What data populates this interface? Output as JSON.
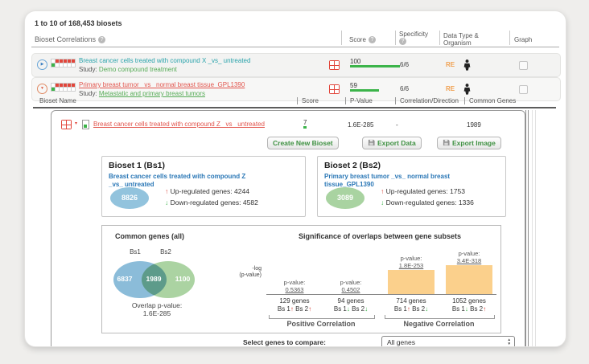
{
  "icons": {
    "help": "?",
    "expand_play": "▶",
    "collapse": "▼",
    "dropdown": "▾",
    "up": "↑",
    "down": "↓",
    "spin_up": "▲",
    "spin_down": "▼"
  },
  "colors": {
    "accent_red": "#e2453a",
    "accent_teal": "#2aa3ab",
    "accent_green": "#3cb44a",
    "link_green": "#56ab57",
    "bar_orange": "#fbd08c",
    "venn_blue": "#8bbcd9",
    "venn_green": "#abd3a2",
    "bioset_blue": "#2a77b6",
    "re_orange": "#f0a050"
  },
  "header": {
    "count": "1 to 10 of 168,453 biosets",
    "section": "Bioset Correlations",
    "columns": {
      "score": "Score",
      "specificity": "Specificity",
      "datatype1": "Data Type &",
      "datatype2": "Organism",
      "graph": "Graph"
    }
  },
  "rows": [
    {
      "name": "Breast cancer cells treated with compound X _vs_ untreated",
      "study_label": "Study:",
      "study": "Demo compound treatment",
      "score": "100",
      "score_pct": 100,
      "specificity": "6/6",
      "data_type": "RE"
    },
    {
      "name": "Primary breast tumor _vs_ normal breast tissue_GPL1390",
      "study_label": "Study:",
      "study": "Metastatic and primary breast tumors",
      "score": "59",
      "score_pct": 58,
      "specificity": "6/6",
      "data_type": "RE"
    }
  ],
  "subheader": {
    "bioset_name": "Bioset Name",
    "score": "Score",
    "p_value": "P-Value",
    "correlation": "Correlation/Direction",
    "common_genes": "Common Genes"
  },
  "detail": {
    "row": {
      "name": "Breast cancer cells treated with compound Z _vs_ untreated",
      "score": "7",
      "score_pct": 8,
      "p_value": "1.6E-285",
      "correlation": "-",
      "common_genes": "1989"
    },
    "buttons": {
      "create": "Create New Bioset",
      "export_data": "Export Data",
      "export_image": "Export Image"
    },
    "bioset1": {
      "title": "Bioset 1 (Bs1)",
      "name": "Breast cancer cells treated with compound Z _vs_ untreated",
      "total": "8826",
      "up_label": "Up-regulated genes:",
      "up_count": "4244",
      "down_label": "Down-regulated genes:",
      "down_count": "4582"
    },
    "bioset2": {
      "title": "Bioset 2 (Bs2)",
      "name": "Primary breast tumor _vs_ normal breast tissue_GPL1390",
      "total": "3089",
      "up_label": "Up-regulated genes:",
      "up_count": "1753",
      "down_label": "Down-regulated genes:",
      "down_count": "1336"
    },
    "venn": {
      "title": "Common genes  (all)",
      "bs1": "Bs1",
      "bs2": "Bs2",
      "left_count": "6837",
      "overlap_count": "1989",
      "right_count": "1100",
      "overlap_label": "Overlap p-value:",
      "overlap_value": "1.6E-285"
    },
    "overlap_chart": {
      "title": "Significance of overlaps between gene subsets",
      "ylabel1": "-log",
      "ylabel2": "(p-value)",
      "p_label": "p-value:",
      "cols": [
        {
          "p": "0.5363",
          "genes": "129 genes",
          "bs1": "Bs 1",
          "a1": "↑",
          "bs2": "Bs 2",
          "a2": "↑",
          "bar": 0
        },
        {
          "p": "0.4502",
          "genes": "94 genes",
          "bs1": "Bs 1",
          "a1": "↓",
          "bs2": "Bs 2",
          "a2": "↓",
          "bar": 0
        },
        {
          "p": "1.8E-253",
          "genes": "714 genes",
          "bs1": "Bs 1",
          "a1": "↑",
          "bs2": "Bs 2",
          "a2": "↓",
          "bar": 30
        },
        {
          "p": "3.4E-318",
          "genes": "1052 genes",
          "bs1": "Bs 1",
          "a1": "↓",
          "bs2": "Bs 2",
          "a2": "↑",
          "bar": 36
        }
      ],
      "group1": "Positive Correlation",
      "group2": "Negative Correlation"
    },
    "select_row": {
      "label": "Select genes to compare:",
      "value": "All genes"
    }
  },
  "chart_data": [
    {
      "type": "venn",
      "title": "Common genes (all)",
      "sets": [
        "Bs1",
        "Bs2"
      ],
      "bs1_only": 6837,
      "overlap": 1989,
      "bs2_only": 1100,
      "overlap_p_value": "1.6E-285"
    },
    {
      "type": "bar",
      "title": "Significance of overlaps between gene subsets",
      "ylabel": "-log (p-value)",
      "categories": [
        "Bs1↑ Bs2↑",
        "Bs1↓ Bs2↓",
        "Bs1↑ Bs2↓",
        "Bs1↓ Bs2↑"
      ],
      "p_values": [
        "0.5363",
        "0.4502",
        "1.8E-253",
        "3.4E-318"
      ],
      "gene_counts": [
        129,
        94,
        714,
        1052
      ],
      "groups": [
        "Positive Correlation",
        "Negative Correlation"
      ],
      "legend_position": "none",
      "grid": false
    }
  ]
}
